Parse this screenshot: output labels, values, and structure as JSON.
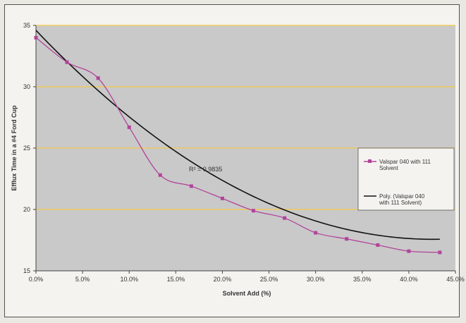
{
  "chart_data": {
    "type": "line",
    "title": "",
    "xlabel": "Solvent Add (%)",
    "ylabel": "Efflux Time in a #4 Ford Cup",
    "xlim": [
      0,
      0.45
    ],
    "ylim": [
      15,
      35
    ],
    "x_ticks": [
      "0.0%",
      "5.0%",
      "10.0%",
      "15.0%",
      "20.0%",
      "25.0%",
      "30.0%",
      "35.0%",
      "40.0%",
      "45.0%"
    ],
    "y_ticks": [
      "15",
      "20",
      "25",
      "30",
      "35"
    ],
    "series": [
      {
        "name": "Valspar 040 with 111 Solvent",
        "marker": "square",
        "color": "#b2439a",
        "x": [
          0.0,
          0.0333,
          0.0667,
          0.1,
          0.1333,
          0.1667,
          0.2,
          0.2333,
          0.2667,
          0.3,
          0.3333,
          0.3667,
          0.4,
          0.4333
        ],
        "y": [
          34.0,
          32.0,
          30.7,
          26.7,
          22.8,
          21.9,
          20.9,
          19.9,
          19.3,
          18.1,
          17.6,
          17.1,
          16.6,
          16.5
        ]
      },
      {
        "name": "Poly. (Valspar 040 with 111 Solvent)",
        "type": "trendline",
        "color": "#111111",
        "coefficients": [
          34.6,
          -79.9,
          93.7
        ]
      }
    ],
    "annotations": [
      {
        "text": "R² = 0.9835"
      }
    ],
    "legend": {
      "position": "right",
      "entries": [
        [
          "Valspar 040 with 111",
          "Solvent"
        ],
        [
          "Poly. (Valspar 040",
          "with 111 Solvent)"
        ]
      ]
    },
    "grid": {
      "horizontal": true,
      "vertical": false
    },
    "plot_area_color": "#c9c9c9",
    "gridline_color": "#f5c94a"
  }
}
